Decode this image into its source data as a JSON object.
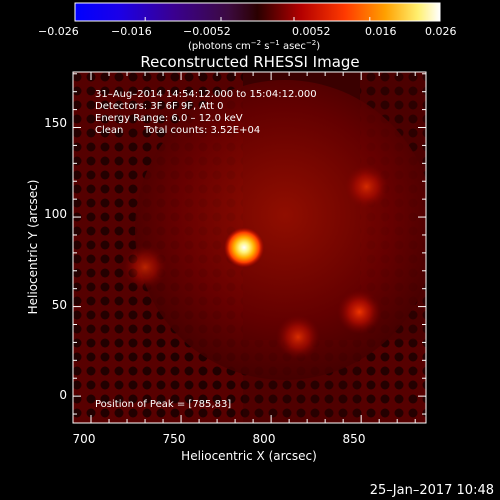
{
  "colorbar": {
    "ticks": [
      "−0.026",
      "−0.016",
      "−0.0052",
      "0.0052",
      "0.016",
      "0.026"
    ],
    "unit_label": {
      "pre": "(photons cm",
      "exp1": "−2",
      "mid": " s",
      "exp2": "−1",
      "mid2": " asec",
      "exp3": "−2",
      "post": ")"
    }
  },
  "title": "Reconstructed RHESSI Image",
  "annotations": {
    "time_range": "31–Aug–2014 14:54:12.000 to 15:04:12.000",
    "detectors": "Detectors: 3F 6F 9F, Att 0",
    "energy": "Energy Range: 6.0 – 12.0 keV",
    "algorithm": "Clean",
    "counts": "Total counts: 3.52E+04",
    "peak": "Position of Peak = [785,83]"
  },
  "axes": {
    "xlabel": "Heliocentric X (arcsec)",
    "ylabel": "Heliocentric Y (arcsec)",
    "xticks": [
      "700",
      "750",
      "800",
      "850"
    ],
    "yticks": [
      "0",
      "50",
      "100",
      "150"
    ],
    "xlim": [
      690,
      886
    ],
    "ylim": [
      -15,
      181
    ]
  },
  "image_data": {
    "colormap": "RHESSI red-to-white (black-red-orange-yellow-white)",
    "peak": [
      785,
      83
    ],
    "sources": [
      {
        "x": 785,
        "y": 83,
        "intensity": 1.0
      },
      {
        "x": 849,
        "y": 47,
        "intensity": 0.45
      },
      {
        "x": 815,
        "y": 33,
        "intensity": 0.38
      },
      {
        "x": 853,
        "y": 117,
        "intensity": 0.35
      },
      {
        "x": 730,
        "y": 72,
        "intensity": 0.3
      }
    ]
  },
  "timestamp": "25–Jan–2017 10:48"
}
